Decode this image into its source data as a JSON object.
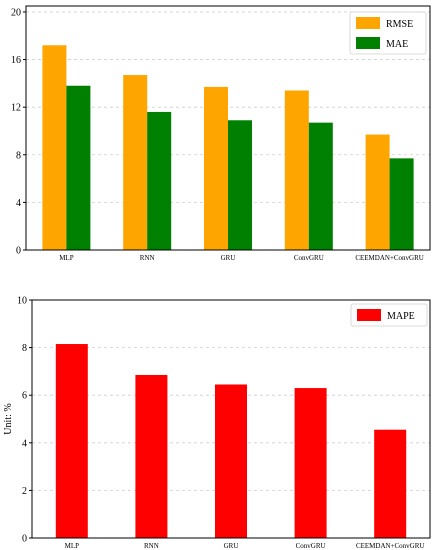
{
  "chart_data": [
    {
      "type": "bar",
      "categories": [
        "MLP",
        "RNN",
        "GRU",
        "ConvGRU",
        "CEEMDAN+ConvGRU"
      ],
      "series": [
        {
          "name": "RMSE",
          "values": [
            17.2,
            14.7,
            13.7,
            13.4,
            9.7
          ],
          "color": "#FFA500"
        },
        {
          "name": "MAE",
          "values": [
            13.8,
            11.6,
            10.9,
            10.7,
            7.7
          ],
          "color": "#008000"
        }
      ],
      "yticks": [
        0,
        4,
        8,
        12,
        16,
        20
      ],
      "ylim": [
        0,
        20.5
      ],
      "xlabel": "",
      "ylabel": "",
      "grid": "horizontal-dashed",
      "legend": "top-right"
    },
    {
      "type": "bar",
      "categories": [
        "MLP",
        "RNN",
        "GRU",
        "ConvGRU",
        "CEEMDAN+ConvGRU"
      ],
      "series": [
        {
          "name": "MAPE",
          "values": [
            8.15,
            6.85,
            6.45,
            6.3,
            4.55
          ],
          "color": "#FF0000"
        }
      ],
      "yticks": [
        0,
        2,
        4,
        6,
        8,
        10
      ],
      "ylim": [
        0,
        10
      ],
      "xlabel": "",
      "ylabel": "Unit: %",
      "grid": "horizontal-dashed",
      "legend": "top-right"
    }
  ]
}
